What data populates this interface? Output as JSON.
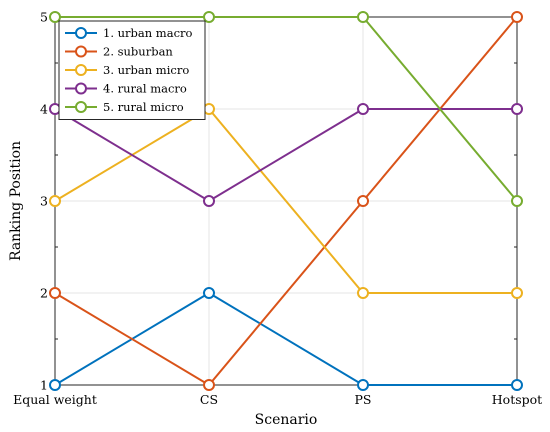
{
  "chart_data": {
    "type": "line",
    "xlabel": "Scenario",
    "ylabel": "Ranking Position",
    "categories": [
      "Equal weight",
      "CS",
      "PS",
      "Hotspot"
    ],
    "ylim": [
      1,
      5
    ],
    "yticks": [
      "1",
      "2",
      "3",
      "4",
      "5"
    ],
    "grid": true,
    "legend_position": "top-left",
    "series": [
      {
        "name": "1. urban macro",
        "color": "#0072BD",
        "values": [
          1,
          2,
          1,
          1
        ]
      },
      {
        "name": "2. suburban",
        "color": "#D95319",
        "values": [
          2,
          1,
          3,
          5
        ]
      },
      {
        "name": "3. urban micro",
        "color": "#EDB120",
        "values": [
          3,
          4,
          2,
          2
        ]
      },
      {
        "name": "4. rural macro",
        "color": "#7E2F8E",
        "values": [
          4,
          3,
          4,
          4
        ]
      },
      {
        "name": "5. rural micro",
        "color": "#77AC30",
        "values": [
          5,
          5,
          5,
          3
        ]
      }
    ]
  }
}
